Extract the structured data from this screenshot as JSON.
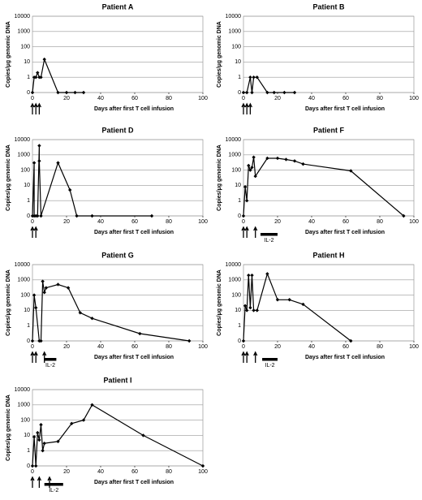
{
  "chart_data": [
    {
      "type": "line",
      "title": "Patient A",
      "xlabel": "Days after first T cell infusion",
      "ylabel": "Copies/μg genomic DNA",
      "log": true,
      "grid": true,
      "color": "#000000",
      "xlim": [
        0,
        100
      ],
      "xticks": [
        0,
        20,
        40,
        60,
        80,
        100
      ],
      "ylim": [
        0,
        10000
      ],
      "yticks": [
        0,
        1,
        10,
        100,
        1000,
        10000
      ],
      "x": [
        0,
        1,
        2,
        3,
        4,
        5,
        7,
        15,
        20,
        25,
        30
      ],
      "values": [
        0,
        1,
        1,
        2,
        1,
        1,
        15,
        0,
        0,
        0,
        0
      ],
      "infusion_days": [
        0,
        2,
        4
      ]
    },
    {
      "type": "line",
      "title": "Patient B",
      "xlabel": "Days after first T cell infusion",
      "ylabel": "Copies/μg genomic DNA",
      "log": true,
      "grid": true,
      "color": "#000000",
      "xlim": [
        0,
        100
      ],
      "xticks": [
        0,
        20,
        40,
        60,
        80,
        100
      ],
      "ylim": [
        0,
        10000
      ],
      "yticks": [
        0,
        1,
        10,
        100,
        1000,
        10000
      ],
      "x": [
        0,
        2,
        4,
        5,
        6,
        8,
        14,
        18,
        24,
        30
      ],
      "values": [
        0,
        0,
        1,
        0,
        1,
        1,
        0,
        0,
        0,
        0
      ],
      "infusion_days": [
        0,
        2,
        4
      ]
    },
    {
      "type": "line",
      "title": "Patient D",
      "xlabel": "Days after first T cell infusion",
      "ylabel": "Copies/μg genomic DNA",
      "log": true,
      "grid": true,
      "color": "#000000",
      "xlim": [
        0,
        100
      ],
      "xticks": [
        0,
        20,
        40,
        60,
        80,
        100
      ],
      "ylim": [
        0,
        10000
      ],
      "yticks": [
        0,
        1,
        10,
        100,
        1000,
        10000
      ],
      "x": [
        0,
        1,
        1,
        2,
        3,
        4,
        4,
        5,
        15,
        22,
        26,
        35,
        70
      ],
      "values": [
        0,
        300,
        0,
        0,
        0,
        4000,
        400,
        0,
        300,
        5,
        0,
        0,
        0
      ],
      "infusion_days": [
        0,
        2
      ]
    },
    {
      "type": "line",
      "title": "Patient F",
      "xlabel": "Days after first T cell infusion",
      "ylabel": "Copies/μg genomic DNA",
      "log": true,
      "grid": true,
      "color": "#000000",
      "xlim": [
        0,
        100
      ],
      "xticks": [
        0,
        20,
        40,
        60,
        80,
        100
      ],
      "ylim": [
        0,
        10000
      ],
      "yticks": [
        0,
        1,
        10,
        100,
        1000,
        10000
      ],
      "x": [
        0,
        1,
        2,
        3,
        4,
        5,
        6,
        7,
        14,
        20,
        25,
        30,
        35,
        63,
        94
      ],
      "values": [
        0,
        8,
        1,
        200,
        100,
        150,
        700,
        40,
        600,
        600,
        500,
        400,
        250,
        90,
        0
      ],
      "infusion_days": [
        0,
        2,
        7
      ],
      "il2": {
        "label": "IL-2",
        "range": [
          10,
          20
        ]
      }
    },
    {
      "type": "line",
      "title": "Patient G",
      "xlabel": "Days after first T cell infusion",
      "ylabel": "Copies/μg genomic DNA",
      "log": true,
      "grid": true,
      "color": "#000000",
      "xlim": [
        0,
        100
      ],
      "xticks": [
        0,
        20,
        40,
        60,
        80,
        100
      ],
      "ylim": [
        0,
        10000
      ],
      "yticks": [
        0,
        1,
        10,
        100,
        1000,
        10000
      ],
      "x": [
        0,
        1,
        2,
        4,
        5,
        6,
        7,
        8,
        15,
        21,
        28,
        35,
        63,
        92
      ],
      "values": [
        0,
        100,
        15,
        0,
        0,
        800,
        150,
        300,
        500,
        300,
        7,
        3,
        0.3,
        0
      ],
      "infusion_days": [
        0,
        2,
        7
      ],
      "il2": {
        "label": "IL-2",
        "range": [
          7,
          14
        ]
      }
    },
    {
      "type": "line",
      "title": "Patient H",
      "xlabel": "Days after first T cell infusion",
      "ylabel": "Copies/μg genomic DNA",
      "log": true,
      "grid": true,
      "color": "#000000",
      "xlim": [
        0,
        100
      ],
      "xticks": [
        0,
        20,
        40,
        60,
        80,
        100
      ],
      "ylim": [
        0,
        10000
      ],
      "yticks": [
        0,
        1,
        10,
        100,
        1000,
        10000
      ],
      "x": [
        0,
        1,
        2,
        3,
        4,
        5,
        6,
        8,
        14,
        20,
        27,
        35,
        63
      ],
      "values": [
        0,
        20,
        10,
        2000,
        15,
        2000,
        10,
        10,
        2500,
        50,
        50,
        25,
        0
      ],
      "infusion_days": [
        0,
        2,
        7
      ],
      "il2": {
        "label": "IL-2",
        "range": [
          11,
          20
        ]
      }
    },
    {
      "type": "line",
      "title": "Patient I",
      "xlabel": "Days after first T cell infusion",
      "ylabel": "Copies/μg genomic DNA",
      "log": true,
      "grid": true,
      "color": "#000000",
      "xlim": [
        0,
        100
      ],
      "xticks": [
        0,
        20,
        40,
        60,
        80,
        100
      ],
      "ylim": [
        0,
        10000
      ],
      "yticks": [
        0,
        1,
        10,
        100,
        1000,
        10000
      ],
      "x": [
        0,
        1,
        2,
        3,
        4,
        5,
        6,
        7,
        15,
        23,
        30,
        35,
        65,
        100
      ],
      "values": [
        0,
        8,
        0,
        15,
        5,
        50,
        1,
        3,
        4,
        60,
        100,
        1000,
        10,
        0
      ],
      "infusion_days": [
        0,
        4,
        10
      ],
      "il2": {
        "label": "IL-2",
        "range": [
          7,
          18
        ]
      }
    }
  ]
}
